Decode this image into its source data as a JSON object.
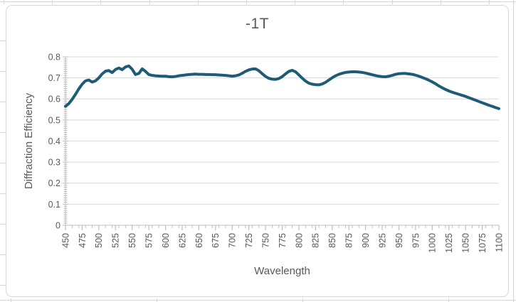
{
  "chart": {
    "title": "-1T",
    "x_axis_title": "Wavelength",
    "y_axis_title": "Diffraction Efficiency"
  },
  "colors": {
    "series_line": "#1E5B76",
    "gridline": "#d9d9d9",
    "axis_line": "#bfbfbf",
    "tick_mark": "#bfbfbf",
    "label_text": "#595959",
    "chart_border": "#d9d9d9",
    "worksheet_gridline": "#d6d6d6"
  },
  "chart_data": {
    "type": "line",
    "title": "-1T",
    "xlabel": "Wavelength",
    "ylabel": "Diffraction Efficiency",
    "xlim": [
      450,
      1100
    ],
    "ylim": [
      0,
      0.8
    ],
    "x_major_ticks": [
      450,
      475,
      500,
      525,
      550,
      575,
      600,
      625,
      650,
      675,
      700,
      725,
      750,
      775,
      800,
      825,
      850,
      875,
      900,
      925,
      950,
      975,
      1000,
      1025,
      1050,
      1075,
      1100
    ],
    "x_minor_tick_step": 10,
    "y_major_ticks": [
      0,
      0.1,
      0.2,
      0.3,
      0.4,
      0.5,
      0.6,
      0.7,
      0.8
    ],
    "y_minor_tick_step": 0.01,
    "grid": "horizontal",
    "legend": "none",
    "series": [
      {
        "name": "-1T",
        "x": [
          450,
          455,
          460,
          465,
          470,
          475,
          480,
          485,
          490,
          495,
          500,
          505,
          510,
          515,
          520,
          525,
          530,
          535,
          540,
          545,
          550,
          555,
          560,
          565,
          570,
          575,
          580,
          585,
          590,
          595,
          600,
          605,
          610,
          615,
          620,
          625,
          630,
          635,
          640,
          645,
          650,
          655,
          660,
          665,
          670,
          675,
          680,
          685,
          690,
          695,
          700,
          705,
          710,
          715,
          720,
          725,
          730,
          735,
          740,
          745,
          750,
          755,
          760,
          765,
          770,
          775,
          780,
          785,
          790,
          795,
          800,
          805,
          810,
          815,
          820,
          825,
          830,
          835,
          840,
          845,
          850,
          855,
          860,
          865,
          870,
          875,
          880,
          885,
          890,
          895,
          900,
          905,
          910,
          915,
          920,
          925,
          930,
          935,
          940,
          945,
          950,
          955,
          960,
          965,
          970,
          975,
          980,
          985,
          990,
          995,
          1000,
          1005,
          1010,
          1015,
          1020,
          1025,
          1030,
          1035,
          1040,
          1045,
          1050,
          1055,
          1060,
          1065,
          1070,
          1075,
          1080,
          1085,
          1090,
          1095,
          1100
        ],
        "y": [
          0.565,
          0.578,
          0.598,
          0.622,
          0.648,
          0.67,
          0.686,
          0.69,
          0.68,
          0.686,
          0.7,
          0.719,
          0.732,
          0.735,
          0.725,
          0.74,
          0.747,
          0.739,
          0.752,
          0.757,
          0.741,
          0.716,
          0.721,
          0.743,
          0.731,
          0.716,
          0.712,
          0.71,
          0.709,
          0.708,
          0.708,
          0.706,
          0.705,
          0.707,
          0.71,
          0.712,
          0.714,
          0.716,
          0.717,
          0.718,
          0.717,
          0.717,
          0.716,
          0.716,
          0.715,
          0.715,
          0.714,
          0.713,
          0.712,
          0.71,
          0.708,
          0.71,
          0.714,
          0.722,
          0.731,
          0.738,
          0.742,
          0.743,
          0.734,
          0.72,
          0.707,
          0.698,
          0.694,
          0.693,
          0.697,
          0.706,
          0.719,
          0.731,
          0.736,
          0.729,
          0.714,
          0.699,
          0.685,
          0.675,
          0.67,
          0.668,
          0.667,
          0.671,
          0.679,
          0.69,
          0.701,
          0.71,
          0.717,
          0.722,
          0.726,
          0.728,
          0.729,
          0.729,
          0.728,
          0.726,
          0.723,
          0.719,
          0.715,
          0.711,
          0.708,
          0.706,
          0.705,
          0.708,
          0.712,
          0.717,
          0.72,
          0.721,
          0.721,
          0.719,
          0.717,
          0.713,
          0.708,
          0.702,
          0.696,
          0.689,
          0.681,
          0.672,
          0.662,
          0.653,
          0.645,
          0.638,
          0.632,
          0.627,
          0.622,
          0.617,
          0.612,
          0.606,
          0.6,
          0.594,
          0.588,
          0.582,
          0.576,
          0.57,
          0.565,
          0.559,
          0.554
        ]
      }
    ]
  }
}
